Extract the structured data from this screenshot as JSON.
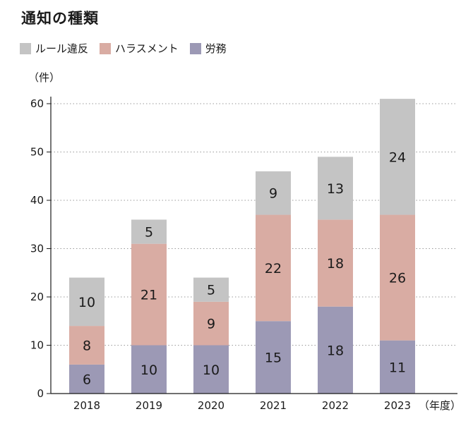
{
  "title": "通知の種類",
  "chart_data": {
    "type": "bar",
    "stacked": true,
    "categories": [
      "2018",
      "2019",
      "2020",
      "2021",
      "2022",
      "2023"
    ],
    "series": [
      {
        "name": "労務",
        "color": "#9c99b5",
        "values": [
          6,
          10,
          10,
          15,
          18,
          11
        ]
      },
      {
        "name": "ハラスメント",
        "color": "#d9aca3",
        "values": [
          8,
          21,
          9,
          22,
          18,
          26
        ]
      },
      {
        "name": "ルール違反",
        "color": "#c4c4c4",
        "values": [
          10,
          5,
          5,
          9,
          13,
          24
        ]
      }
    ],
    "legend_order": [
      "ルール違反",
      "ハラスメント",
      "労務"
    ],
    "legend_position": "top-left",
    "y_unit": "（件）",
    "x_unit": "（年度）",
    "ylim": [
      0,
      60
    ],
    "yticks": [
      0,
      10,
      20,
      30,
      40,
      50,
      60
    ],
    "grid": "horizontal-dotted"
  }
}
